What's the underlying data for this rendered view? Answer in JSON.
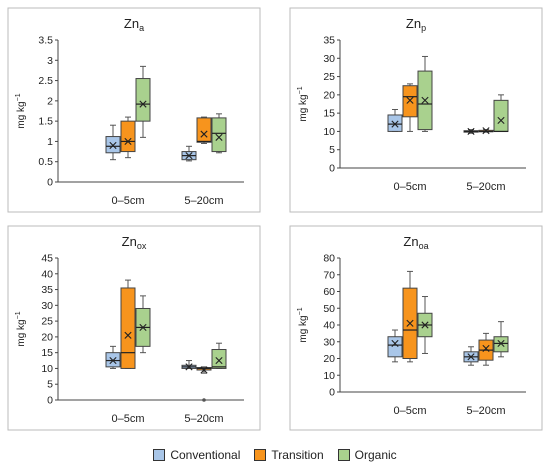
{
  "colors": {
    "conventional": "#a9c6e8",
    "transition": "#f7941d",
    "organic": "#a9d18e"
  },
  "legend": [
    {
      "label": "Conventional",
      "color": "#a9c6e8"
    },
    {
      "label": "Transition",
      "color": "#f7941d"
    },
    {
      "label": "Organic",
      "color": "#a9d18e"
    }
  ],
  "chart_data": [
    {
      "type": "box",
      "title_base": "Zn",
      "title_sub": "a",
      "ylabel_base": "mg kg",
      "ylabel_sup": "−1",
      "ylim": [
        0,
        3.5
      ],
      "yticks": [
        0,
        0.5,
        1,
        1.5,
        2,
        2.5,
        3,
        3.5
      ],
      "categories": [
        "0–5cm",
        "5–20cm"
      ],
      "series": [
        {
          "name": "Conventional",
          "boxes": [
            {
              "min": 0.55,
              "q1": 0.72,
              "median": 0.88,
              "q3": 1.12,
              "max": 1.4,
              "mean": 0.9
            },
            {
              "min": 0.52,
              "q1": 0.55,
              "median": 0.65,
              "q3": 0.75,
              "max": 0.88,
              "mean": 0.65
            }
          ]
        },
        {
          "name": "Transition",
          "boxes": [
            {
              "min": 0.6,
              "q1": 0.75,
              "median": 1.0,
              "q3": 1.5,
              "max": 1.6,
              "mean": 1.0
            },
            {
              "min": 0.95,
              "q1": 0.98,
              "median": 1.0,
              "q3": 1.58,
              "max": 1.6,
              "mean": 1.18
            }
          ]
        },
        {
          "name": "Organic",
          "boxes": [
            {
              "min": 1.1,
              "q1": 1.5,
              "median": 1.92,
              "q3": 2.55,
              "max": 2.85,
              "mean": 1.92
            },
            {
              "min": 0.72,
              "q1": 0.75,
              "median": 1.2,
              "q3": 1.58,
              "max": 1.68,
              "mean": 1.1
            }
          ]
        }
      ]
    },
    {
      "type": "box",
      "title_base": "Zn",
      "title_sub": "p",
      "ylabel_base": "mg kg",
      "ylabel_sup": "−1",
      "ylim": [
        0,
        35
      ],
      "yticks": [
        0,
        5,
        10,
        15,
        20,
        25,
        30,
        35
      ],
      "categories": [
        "0–5cm",
        "5–20cm"
      ],
      "series": [
        {
          "name": "Conventional",
          "boxes": [
            {
              "min": 10,
              "q1": 10,
              "median": 12,
              "q3": 14.5,
              "max": 16,
              "mean": 12
            },
            {
              "min": 9.5,
              "q1": 9.8,
              "median": 10,
              "q3": 10.2,
              "max": 10.5,
              "mean": 10
            }
          ]
        },
        {
          "name": "Transition",
          "boxes": [
            {
              "min": 10,
              "q1": 14,
              "median": 19.5,
              "q3": 22.5,
              "max": 23,
              "mean": 18.5
            },
            {
              "min": 9.8,
              "q1": 9.9,
              "median": 10,
              "q3": 10.3,
              "max": 10.5,
              "mean": 10.2
            }
          ]
        },
        {
          "name": "Organic",
          "boxes": [
            {
              "min": 10,
              "q1": 10.5,
              "median": 17.5,
              "q3": 26.5,
              "max": 30.5,
              "mean": 18.5
            },
            {
              "min": 10,
              "q1": 10,
              "median": 10,
              "q3": 18.5,
              "max": 20,
              "mean": 13
            }
          ]
        }
      ]
    },
    {
      "type": "box",
      "title_base": "Zn",
      "title_sub": "ox",
      "ylabel_base": "mg kg",
      "ylabel_sup": "−1",
      "ylim": [
        0,
        45
      ],
      "yticks": [
        0,
        5,
        10,
        15,
        20,
        25,
        30,
        35,
        40,
        45
      ],
      "categories": [
        "0–5cm",
        "5–20cm"
      ],
      "series": [
        {
          "name": "Conventional",
          "boxes": [
            {
              "min": 10,
              "q1": 10.5,
              "median": 12.5,
              "q3": 15,
              "max": 17,
              "mean": 12.5
            },
            {
              "min": 10,
              "q1": 10,
              "median": 10.5,
              "q3": 11,
              "max": 12.5,
              "mean": 10.5
            }
          ]
        },
        {
          "name": "Transition",
          "boxes": [
            {
              "min": 10,
              "q1": 10,
              "median": 15,
              "q3": 35.5,
              "max": 38,
              "mean": 20.5
            },
            {
              "min": 8.5,
              "q1": 9.5,
              "median": 10,
              "q3": 10.3,
              "max": 10.5,
              "mean": 9.5,
              "outlier": 0
            }
          ]
        },
        {
          "name": "Organic",
          "boxes": [
            {
              "min": 15,
              "q1": 17,
              "median": 23,
              "q3": 29,
              "max": 33,
              "mean": 23
            },
            {
              "min": 10,
              "q1": 10,
              "median": 10.5,
              "q3": 16,
              "max": 18,
              "mean": 12.5
            }
          ]
        }
      ]
    },
    {
      "type": "box",
      "title_base": "Zn",
      "title_sub": "oa",
      "ylabel_base": "mg kg",
      "ylabel_sup": "−1",
      "ylim": [
        0,
        80
      ],
      "yticks": [
        0,
        10,
        20,
        30,
        40,
        50,
        60,
        70,
        80
      ],
      "categories": [
        "0–5cm",
        "5–20cm"
      ],
      "series": [
        {
          "name": "Conventional",
          "boxes": [
            {
              "min": 18,
              "q1": 21,
              "median": 28,
              "q3": 33,
              "max": 37,
              "mean": 29
            },
            {
              "min": 16,
              "q1": 18,
              "median": 21,
              "q3": 24,
              "max": 27,
              "mean": 21
            }
          ]
        },
        {
          "name": "Transition",
          "boxes": [
            {
              "min": 18,
              "q1": 20,
              "median": 37,
              "q3": 62,
              "max": 72,
              "mean": 41
            },
            {
              "min": 16,
              "q1": 19,
              "median": 25,
              "q3": 31,
              "max": 35,
              "mean": 26
            }
          ]
        },
        {
          "name": "Organic",
          "boxes": [
            {
              "min": 23,
              "q1": 33,
              "median": 40,
              "q3": 47,
              "max": 57,
              "mean": 40
            },
            {
              "min": 21,
              "q1": 24,
              "median": 29,
              "q3": 33,
              "max": 42,
              "mean": 29
            }
          ]
        }
      ]
    }
  ]
}
